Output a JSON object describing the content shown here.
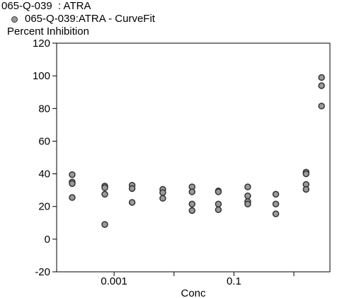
{
  "header": {
    "title": "065-Q-039  : ATRA",
    "legend_label": "065-Q-039:ATRA - CurveFit",
    "y_axis_title": "Percent Inhibition"
  },
  "chart_data": {
    "type": "scatter",
    "title": "065-Q-039  : ATRA",
    "xlabel": "Conc",
    "ylabel": "Percent Inhibition",
    "xscale": "log",
    "xlim": [
      0.00011,
      4.0
    ],
    "ylim": [
      -20,
      120
    ],
    "yticks": [
      -20,
      0,
      20,
      40,
      60,
      80,
      100,
      120
    ],
    "xticks": [
      0.001,
      0.1
    ],
    "xtick_labels": [
      "0.001",
      "0.1"
    ],
    "x_minor_ticks": [
      0.0001,
      0.01,
      1
    ],
    "series": [
      {
        "name": "065-Q-039:ATRA - CurveFit",
        "marker_color": "#9a9a9a",
        "marker_edge": "#333333",
        "points": [
          {
            "x": 0.0002,
            "y": 39.5
          },
          {
            "x": 0.0002,
            "y": 35.0
          },
          {
            "x": 0.0002,
            "y": 34.0
          },
          {
            "x": 0.0002,
            "y": 25.5
          },
          {
            "x": 0.0007,
            "y": 32.5
          },
          {
            "x": 0.0007,
            "y": 31.5
          },
          {
            "x": 0.0007,
            "y": 27.5
          },
          {
            "x": 0.0007,
            "y": 9.0
          },
          {
            "x": 0.002,
            "y": 33.0
          },
          {
            "x": 0.002,
            "y": 31.0
          },
          {
            "x": 0.002,
            "y": 22.5
          },
          {
            "x": 0.0065,
            "y": 30.5
          },
          {
            "x": 0.0065,
            "y": 28.5
          },
          {
            "x": 0.0065,
            "y": 25.0
          },
          {
            "x": 0.02,
            "y": 32.0
          },
          {
            "x": 0.02,
            "y": 29.0
          },
          {
            "x": 0.02,
            "y": 21.5
          },
          {
            "x": 0.02,
            "y": 17.5
          },
          {
            "x": 0.055,
            "y": 29.5
          },
          {
            "x": 0.055,
            "y": 29.0
          },
          {
            "x": 0.055,
            "y": 21.5
          },
          {
            "x": 0.055,
            "y": 18.0
          },
          {
            "x": 0.17,
            "y": 32.0
          },
          {
            "x": 0.17,
            "y": 26.5
          },
          {
            "x": 0.17,
            "y": 23.0
          },
          {
            "x": 0.17,
            "y": 21.5
          },
          {
            "x": 0.5,
            "y": 27.5
          },
          {
            "x": 0.5,
            "y": 21.5
          },
          {
            "x": 0.5,
            "y": 15.5
          },
          {
            "x": 1.6,
            "y": 41.0
          },
          {
            "x": 1.6,
            "y": 40.0
          },
          {
            "x": 1.6,
            "y": 33.5
          },
          {
            "x": 1.6,
            "y": 30.5
          },
          {
            "x": 2.9,
            "y": 99.0
          },
          {
            "x": 2.9,
            "y": 94.0
          },
          {
            "x": 2.9,
            "y": 81.5
          }
        ]
      }
    ],
    "grid": false,
    "legend_position": "top-left"
  }
}
